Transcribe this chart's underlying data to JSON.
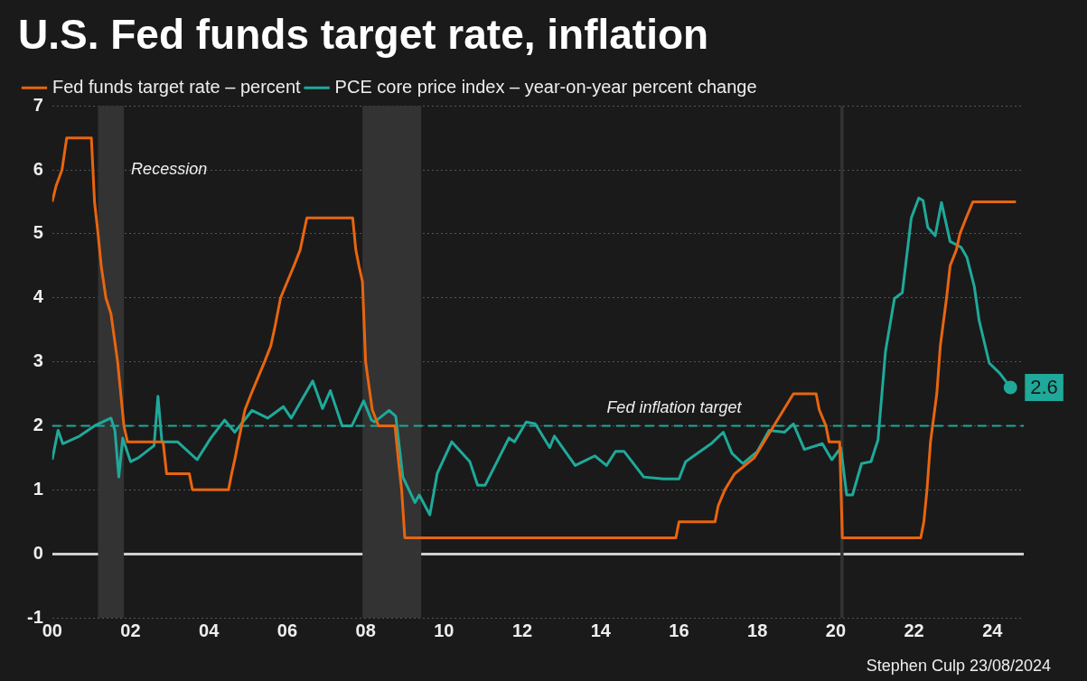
{
  "chart_data": {
    "type": "line",
    "title": "U.S. Fed funds target rate, inflation",
    "xlim": [
      2000,
      2024.8
    ],
    "xticks": [
      {
        "value": 2000,
        "label": "00"
      },
      {
        "value": 2002,
        "label": "02"
      },
      {
        "value": 2004,
        "label": "04"
      },
      {
        "value": 2006,
        "label": "06"
      },
      {
        "value": 2008,
        "label": "08"
      },
      {
        "value": 2010,
        "label": "10"
      },
      {
        "value": 2012,
        "label": "12"
      },
      {
        "value": 2014,
        "label": "14"
      },
      {
        "value": 2016,
        "label": "16"
      },
      {
        "value": 2018,
        "label": "18"
      },
      {
        "value": 2020,
        "label": "20"
      },
      {
        "value": 2022,
        "label": "22"
      },
      {
        "value": 2024,
        "label": "24"
      }
    ],
    "ylim": [
      -1,
      7
    ],
    "yticks": [
      -1,
      0,
      1,
      2,
      3,
      4,
      5,
      6,
      7
    ],
    "grid": "y",
    "legend": "top left",
    "marker": "none",
    "line_style": "solid",
    "series": [
      {
        "name": "Fed funds target rate – percent",
        "color": "#e8650f",
        "x": [
          2000.0,
          2000.1,
          2000.25,
          2000.37,
          2001.0,
          2001.08,
          2001.17,
          2001.25,
          2001.37,
          2001.5,
          2001.67,
          2001.83,
          2001.92,
          2002.83,
          2002.92,
          2003.5,
          2003.58,
          2004.5,
          2004.58,
          2004.67,
          2004.75,
          2004.92,
          2005.08,
          2005.25,
          2005.42,
          2005.58,
          2005.67,
          2005.83,
          2006.0,
          2006.17,
          2006.33,
          2006.5,
          2007.67,
          2007.75,
          2007.83,
          2007.92,
          2008.0,
          2008.17,
          2008.33,
          2008.75,
          2008.83,
          2008.92,
          2009.0,
          2015.92,
          2016.0,
          2016.92,
          2017.0,
          2017.17,
          2017.42,
          2017.92,
          2018.17,
          2018.42,
          2018.67,
          2018.92,
          2019.5,
          2019.58,
          2019.75,
          2019.83,
          2020.1,
          2020.17,
          2022.17,
          2022.25,
          2022.33,
          2022.42,
          2022.58,
          2022.67,
          2022.83,
          2022.92,
          2023.08,
          2023.17,
          2023.33,
          2023.5,
          2024.6
        ],
        "values": [
          5.5,
          5.75,
          6.0,
          6.5,
          6.5,
          5.5,
          5.0,
          4.5,
          4.0,
          3.75,
          3.0,
          2.0,
          1.75,
          1.75,
          1.25,
          1.25,
          1.0,
          1.0,
          1.25,
          1.5,
          1.75,
          2.25,
          2.5,
          2.75,
          3.0,
          3.25,
          3.5,
          4.0,
          4.25,
          4.5,
          4.75,
          5.25,
          5.25,
          4.75,
          4.5,
          4.25,
          3.0,
          2.25,
          2.0,
          2.0,
          1.5,
          1.0,
          0.25,
          0.25,
          0.5,
          0.5,
          0.75,
          1.0,
          1.25,
          1.5,
          1.75,
          2.0,
          2.25,
          2.5,
          2.5,
          2.25,
          2.0,
          1.75,
          1.75,
          0.25,
          0.25,
          0.5,
          1.0,
          1.75,
          2.5,
          3.25,
          4.0,
          4.5,
          4.75,
          5.0,
          5.25,
          5.5,
          5.5
        ]
      },
      {
        "name": "PCE core price index – year-on-year percent change",
        "color": "#1fa99a",
        "x": [
          2000.0,
          2000.15,
          2000.27,
          2000.7,
          2001.08,
          2001.5,
          2001.6,
          2001.7,
          2001.8,
          2002.0,
          2002.2,
          2002.6,
          2002.7,
          2002.8,
          2003.2,
          2003.7,
          2004.05,
          2004.4,
          2004.66,
          2005.1,
          2005.5,
          2005.9,
          2006.1,
          2006.65,
          2006.9,
          2007.1,
          2007.4,
          2007.65,
          2007.95,
          2008.15,
          2008.23,
          2008.6,
          2008.77,
          2008.95,
          2009.26,
          2009.37,
          2009.64,
          2009.83,
          2010.2,
          2010.66,
          2010.86,
          2011.05,
          2011.66,
          2011.8,
          2012.1,
          2012.33,
          2012.7,
          2012.82,
          2013.35,
          2013.85,
          2014.15,
          2014.38,
          2014.6,
          2015.1,
          2015.6,
          2016.0,
          2016.17,
          2016.82,
          2017.13,
          2017.35,
          2017.63,
          2018.0,
          2018.3,
          2018.69,
          2018.92,
          2019.2,
          2019.66,
          2019.9,
          2020.13,
          2020.28,
          2020.43,
          2020.66,
          2020.9,
          2021.08,
          2021.27,
          2021.5,
          2021.7,
          2021.93,
          2022.12,
          2022.23,
          2022.35,
          2022.54,
          2022.7,
          2022.92,
          2023.2,
          2023.35,
          2023.54,
          2023.66,
          2023.92,
          2024.19,
          2024.46
        ],
        "values": [
          1.47,
          1.93,
          1.72,
          1.84,
          2.0,
          2.12,
          1.93,
          1.2,
          1.81,
          1.44,
          1.5,
          1.69,
          2.46,
          1.75,
          1.75,
          1.47,
          1.81,
          2.09,
          1.9,
          2.24,
          2.12,
          2.3,
          2.12,
          2.7,
          2.27,
          2.55,
          2.0,
          2.0,
          2.39,
          2.09,
          2.06,
          2.24,
          2.15,
          1.2,
          0.8,
          0.92,
          0.61,
          1.26,
          1.75,
          1.44,
          1.07,
          1.07,
          1.81,
          1.75,
          2.06,
          2.03,
          1.66,
          1.84,
          1.38,
          1.53,
          1.38,
          1.6,
          1.6,
          1.2,
          1.17,
          1.17,
          1.44,
          1.72,
          1.9,
          1.57,
          1.41,
          1.6,
          1.93,
          1.9,
          2.03,
          1.63,
          1.72,
          1.47,
          1.66,
          0.92,
          0.92,
          1.41,
          1.44,
          1.78,
          3.16,
          3.99,
          4.08,
          5.25,
          5.56,
          5.52,
          5.1,
          4.97,
          5.49,
          4.88,
          4.79,
          4.63,
          4.17,
          3.65,
          2.98,
          2.82,
          2.6
        ],
        "value_labels": [
          null,
          null,
          null,
          null,
          null,
          null,
          null,
          null,
          null,
          null,
          null,
          null,
          null,
          null,
          null,
          null,
          null,
          null,
          null,
          null,
          null,
          null,
          null,
          null,
          null,
          null,
          null,
          null,
          null,
          null,
          null,
          null,
          null,
          null,
          null,
          null,
          null,
          null,
          null,
          null,
          null,
          null,
          null,
          null,
          null,
          null,
          null,
          null,
          null,
          null,
          null,
          null,
          null,
          null,
          null,
          null,
          null,
          null,
          null,
          null,
          null,
          null,
          null,
          null,
          null,
          null,
          null,
          null,
          null,
          null,
          null,
          null,
          null,
          null,
          null,
          null,
          null,
          null,
          null,
          null,
          null,
          null,
          null,
          null,
          null,
          null,
          null,
          null,
          null,
          null,
          "2.6"
        ]
      }
    ],
    "bands": [
      {
        "axis": "x",
        "from": 2001.17,
        "to": 2001.83,
        "label": "Recession",
        "color": "#333333"
      },
      {
        "axis": "x",
        "from": 2007.92,
        "to": 2009.42,
        "color": "#333333"
      },
      {
        "axis": "x",
        "from": 2020.12,
        "to": 2020.2,
        "color": "#333333"
      }
    ],
    "ref_lines": [
      {
        "axis": "y",
        "value": 2,
        "label": "Fed inflation target",
        "color": "#1fa99a",
        "line_style": "dashed"
      }
    ],
    "annotations": [
      "Stephen Culp 23/08/2024"
    ]
  }
}
